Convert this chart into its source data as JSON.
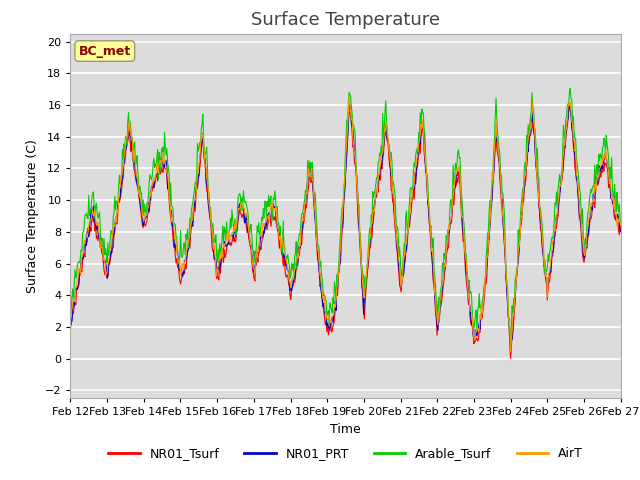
{
  "title": "Surface Temperature",
  "xlabel": "Time",
  "ylabel": "Surface Temperature (C)",
  "ylim": [
    -2.5,
    20.5
  ],
  "yticks": [
    -2,
    0,
    2,
    4,
    6,
    8,
    10,
    12,
    14,
    16,
    18,
    20
  ],
  "x_labels": [
    "Feb 12",
    "Feb 13",
    "Feb 14",
    "Feb 15",
    "Feb 16",
    "Feb 17",
    "Feb 18",
    "Feb 19",
    "Feb 20",
    "Feb 21",
    "Feb 22",
    "Feb 23",
    "Feb 24",
    "Feb 25",
    "Feb 26",
    "Feb 27"
  ],
  "legend_labels": [
    "NR01_Tsurf",
    "NR01_PRT",
    "Arable_Tsurf",
    "AirT"
  ],
  "line_colors": [
    "#ff0000",
    "#0000cc",
    "#00cc00",
    "#ff9900"
  ],
  "annotation_text": "BC_met",
  "annotation_color": "#8b0000",
  "annotation_bg": "#ffff99",
  "background_color": "#dcdcdc",
  "grid_color": "#ffffff",
  "title_fontsize": 13,
  "axis_fontsize": 9,
  "tick_fontsize": 8
}
